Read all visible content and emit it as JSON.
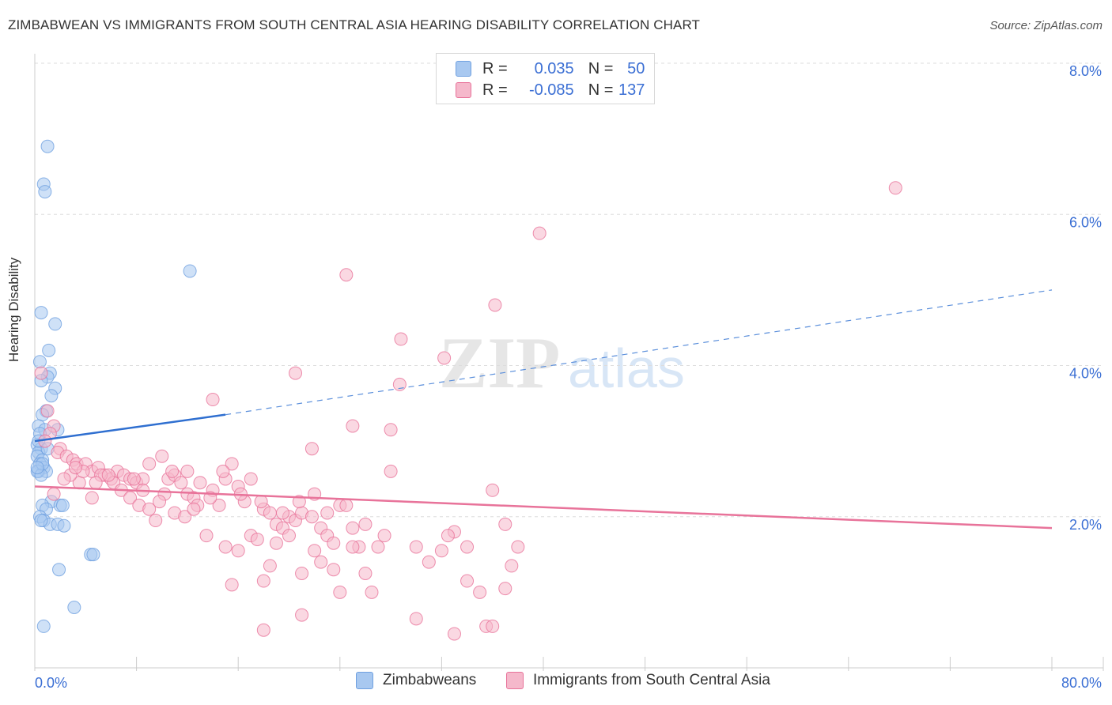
{
  "title": "ZIMBABWEAN VS IMMIGRANTS FROM SOUTH CENTRAL ASIA HEARING DISABILITY CORRELATION CHART",
  "source": "Source: ZipAtlas.com",
  "watermark": {
    "zip": "ZIP",
    "atlas": "atlas"
  },
  "legend": [
    {
      "r_label": "R =",
      "r_value": "0.035",
      "n_label": "N =",
      "n_value": "50",
      "color": "#a8c8f0"
    },
    {
      "r_label": "R =",
      "r_value": "-0.085",
      "n_label": "N =",
      "n_value": "137",
      "color": "#f5b8cb"
    }
  ],
  "chart_data": {
    "type": "scatter",
    "title": "ZIMBABWEAN VS IMMIGRANTS FROM SOUTH CENTRAL ASIA HEARING DISABILITY CORRELATION CHART",
    "xlabel": "",
    "ylabel": "Hearing Disability",
    "xlim": [
      0,
      80
    ],
    "ylim": [
      0,
      8
    ],
    "x_tick_labels": [
      "0.0%",
      "80.0%"
    ],
    "y_tick_labels": [
      "2.0%",
      "4.0%",
      "6.0%",
      "8.0%"
    ],
    "y_ticks": [
      2,
      4,
      6,
      8
    ],
    "grid": true,
    "legend_position": "bottom",
    "series": [
      {
        "name": "Zimbabweans",
        "color": "#6fa0e0",
        "fill": "#a8c8f0",
        "trend": {
          "x0": 0,
          "y0": 3.0,
          "x1_solid": 15,
          "y1_solid": 3.35,
          "x1_dashed": 80,
          "y1_dashed": 5.0
        },
        "points": [
          [
            1.0,
            6.9
          ],
          [
            0.7,
            6.4
          ],
          [
            0.8,
            6.3
          ],
          [
            12.2,
            5.25
          ],
          [
            0.5,
            4.7
          ],
          [
            1.6,
            4.55
          ],
          [
            1.1,
            4.2
          ],
          [
            0.4,
            4.05
          ],
          [
            1.2,
            3.9
          ],
          [
            1.0,
            3.85
          ],
          [
            0.5,
            3.8
          ],
          [
            1.6,
            3.7
          ],
          [
            1.3,
            3.6
          ],
          [
            0.9,
            3.4
          ],
          [
            0.6,
            3.35
          ],
          [
            0.3,
            3.2
          ],
          [
            0.8,
            3.15
          ],
          [
            1.8,
            3.15
          ],
          [
            0.4,
            3.1
          ],
          [
            0.2,
            2.95
          ],
          [
            0.5,
            2.9
          ],
          [
            0.3,
            2.85
          ],
          [
            0.2,
            2.8
          ],
          [
            0.6,
            2.75
          ],
          [
            0.4,
            2.7
          ],
          [
            0.7,
            2.65
          ],
          [
            0.3,
            2.6
          ],
          [
            0.9,
            2.6
          ],
          [
            0.2,
            2.6
          ],
          [
            0.5,
            2.55
          ],
          [
            1.3,
            2.2
          ],
          [
            2.0,
            2.15
          ],
          [
            2.2,
            2.15
          ],
          [
            0.6,
            2.15
          ],
          [
            0.9,
            2.1
          ],
          [
            0.4,
            2.0
          ],
          [
            0.7,
            1.95
          ],
          [
            1.2,
            1.9
          ],
          [
            1.8,
            1.9
          ],
          [
            2.3,
            1.88
          ],
          [
            0.5,
            1.95
          ],
          [
            4.4,
            1.5
          ],
          [
            4.6,
            1.5
          ],
          [
            1.9,
            1.3
          ],
          [
            3.1,
            0.8
          ],
          [
            0.7,
            0.55
          ],
          [
            0.3,
            3.0
          ],
          [
            0.6,
            2.7
          ],
          [
            1.0,
            2.9
          ],
          [
            0.2,
            2.65
          ]
        ]
      },
      {
        "name": "Immigrants from South Central Asia",
        "color": "#e8739a",
        "fill": "#f5b8cb",
        "trend": {
          "x0": 0,
          "y0": 2.4,
          "x1": 80,
          "y1": 1.85
        },
        "points": [
          [
            67.7,
            6.35
          ],
          [
            39.7,
            5.75
          ],
          [
            24.5,
            5.2
          ],
          [
            36.2,
            4.8
          ],
          [
            28.8,
            4.35
          ],
          [
            32.2,
            4.1
          ],
          [
            20.5,
            3.9
          ],
          [
            28.7,
            3.75
          ],
          [
            14.0,
            3.55
          ],
          [
            25.0,
            3.2
          ],
          [
            28.0,
            3.15
          ],
          [
            21.8,
            2.9
          ],
          [
            0.5,
            3.9
          ],
          [
            1.0,
            3.4
          ],
          [
            1.5,
            3.2
          ],
          [
            1.2,
            3.1
          ],
          [
            0.8,
            3.0
          ],
          [
            2.0,
            2.9
          ],
          [
            1.8,
            2.85
          ],
          [
            2.5,
            2.8
          ],
          [
            3.0,
            2.75
          ],
          [
            3.3,
            2.7
          ],
          [
            4.0,
            2.7
          ],
          [
            4.5,
            2.6
          ],
          [
            5.0,
            2.65
          ],
          [
            5.5,
            2.55
          ],
          [
            6.0,
            2.5
          ],
          [
            6.5,
            2.6
          ],
          [
            7.0,
            2.55
          ],
          [
            7.5,
            2.5
          ],
          [
            8.0,
            2.45
          ],
          [
            8.5,
            2.5
          ],
          [
            9.0,
            2.7
          ],
          [
            10.0,
            2.8
          ],
          [
            10.5,
            2.5
          ],
          [
            11.0,
            2.55
          ],
          [
            11.5,
            2.45
          ],
          [
            12.0,
            2.3
          ],
          [
            13.0,
            2.45
          ],
          [
            14.0,
            2.35
          ],
          [
            15.0,
            2.5
          ],
          [
            15.5,
            2.7
          ],
          [
            16.0,
            2.4
          ],
          [
            16.5,
            2.2
          ],
          [
            17.0,
            2.5
          ],
          [
            18.0,
            2.1
          ],
          [
            18.5,
            2.05
          ],
          [
            19.0,
            1.9
          ],
          [
            19.5,
            1.85
          ],
          [
            20.0,
            2.0
          ],
          [
            20.5,
            1.95
          ],
          [
            21.0,
            2.05
          ],
          [
            22.0,
            2.3
          ],
          [
            22.5,
            1.85
          ],
          [
            23.0,
            1.75
          ],
          [
            23.5,
            1.65
          ],
          [
            24.0,
            2.15
          ],
          [
            25.0,
            1.85
          ],
          [
            25.5,
            1.6
          ],
          [
            26.0,
            1.9
          ],
          [
            27.0,
            1.6
          ],
          [
            28.0,
            2.6
          ],
          [
            30.0,
            1.6
          ],
          [
            31.0,
            1.4
          ],
          [
            32.0,
            1.55
          ],
          [
            33.0,
            1.8
          ],
          [
            34.0,
            1.15
          ],
          [
            35.0,
            1.0
          ],
          [
            36.0,
            2.35
          ],
          [
            37.0,
            1.9
          ],
          [
            37.5,
            1.35
          ],
          [
            38.0,
            1.6
          ],
          [
            18.0,
            0.5
          ],
          [
            21.0,
            0.7
          ],
          [
            30.0,
            0.65
          ],
          [
            33.0,
            0.45
          ],
          [
            35.5,
            0.55
          ],
          [
            36.0,
            0.55
          ],
          [
            11.0,
            2.05
          ],
          [
            12.5,
            2.25
          ],
          [
            13.5,
            1.75
          ],
          [
            14.5,
            2.15
          ],
          [
            15.0,
            1.6
          ],
          [
            16.0,
            1.55
          ],
          [
            17.0,
            1.75
          ],
          [
            17.5,
            1.7
          ],
          [
            18.5,
            1.35
          ],
          [
            19.0,
            1.65
          ],
          [
            20.0,
            1.75
          ],
          [
            21.0,
            1.25
          ],
          [
            22.0,
            1.55
          ],
          [
            22.5,
            1.4
          ],
          [
            23.5,
            1.3
          ],
          [
            24.0,
            1.0
          ],
          [
            25.0,
            1.6
          ],
          [
            26.0,
            1.25
          ],
          [
            26.5,
            1.0
          ],
          [
            15.5,
            1.1
          ],
          [
            18.0,
            1.15
          ],
          [
            3.5,
            2.45
          ],
          [
            4.5,
            2.25
          ],
          [
            5.2,
            2.55
          ],
          [
            6.2,
            2.45
          ],
          [
            6.8,
            2.35
          ],
          [
            7.5,
            2.25
          ],
          [
            8.2,
            2.15
          ],
          [
            9.0,
            2.1
          ],
          [
            9.5,
            1.95
          ],
          [
            10.2,
            2.3
          ],
          [
            11.8,
            2.0
          ],
          [
            12.8,
            2.15
          ],
          [
            13.8,
            2.25
          ],
          [
            8.5,
            2.35
          ],
          [
            9.8,
            2.2
          ],
          [
            10.8,
            2.6
          ],
          [
            12.0,
            2.6
          ],
          [
            14.8,
            2.6
          ],
          [
            2.8,
            2.55
          ],
          [
            3.8,
            2.6
          ],
          [
            4.8,
            2.45
          ],
          [
            5.8,
            2.55
          ],
          [
            7.8,
            2.5
          ],
          [
            19.5,
            2.05
          ],
          [
            20.8,
            2.2
          ],
          [
            21.8,
            2.0
          ],
          [
            23.0,
            2.05
          ],
          [
            24.5,
            2.15
          ],
          [
            27.5,
            1.75
          ],
          [
            34.0,
            1.6
          ],
          [
            37.0,
            1.05
          ],
          [
            32.5,
            1.75
          ],
          [
            16.2,
            2.3
          ],
          [
            17.8,
            2.2
          ],
          [
            12.5,
            2.1
          ],
          [
            1.5,
            2.3
          ],
          [
            2.3,
            2.5
          ],
          [
            3.2,
            2.65
          ]
        ]
      }
    ]
  }
}
